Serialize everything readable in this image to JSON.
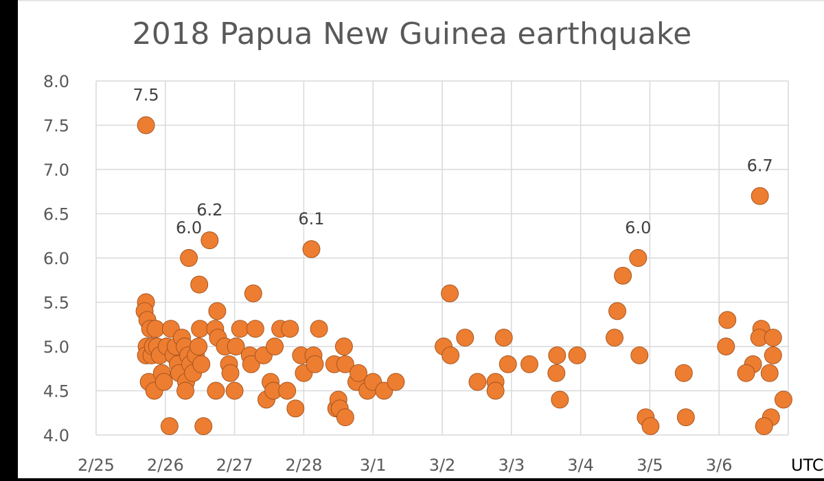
{
  "chart_data": {
    "type": "scatter",
    "title": "2018 Papua New Guinea earthquake",
    "xlabel": "UTC",
    "ylabel": "",
    "x_unit": "days since 2/25 00:00 UTC",
    "xlim": [
      0,
      10
    ],
    "ylim": [
      4.0,
      8.0
    ],
    "x_ticks": [
      {
        "value": 0,
        "label": "2/25"
      },
      {
        "value": 1,
        "label": "2/26"
      },
      {
        "value": 2,
        "label": "2/27"
      },
      {
        "value": 3,
        "label": "2/28"
      },
      {
        "value": 4,
        "label": "3/1"
      },
      {
        "value": 5,
        "label": "3/2"
      },
      {
        "value": 6,
        "label": "3/3"
      },
      {
        "value": 7,
        "label": "3/4"
      },
      {
        "value": 8,
        "label": "3/5"
      },
      {
        "value": 9,
        "label": "3/6"
      }
    ],
    "y_ticks": [
      "4.0",
      "4.5",
      "5.0",
      "5.5",
      "6.0",
      "6.5",
      "7.0",
      "7.5",
      "8.0"
    ],
    "grid": true,
    "legend": "none",
    "marker_color": "#ED7D31",
    "annotations": [
      {
        "x": 0.72,
        "y": 7.5,
        "label": "7.5"
      },
      {
        "x": 1.34,
        "y": 6.0,
        "label": "6.0"
      },
      {
        "x": 1.64,
        "y": 6.2,
        "label": "6.2"
      },
      {
        "x": 3.11,
        "y": 6.1,
        "label": "6.1"
      },
      {
        "x": 7.83,
        "y": 6.0,
        "label": "6.0"
      },
      {
        "x": 9.59,
        "y": 6.7,
        "label": "6.7"
      }
    ],
    "points": [
      [
        0.72,
        7.5
      ],
      [
        0.72,
        5.5
      ],
      [
        0.7,
        5.4
      ],
      [
        0.74,
        5.3
      ],
      [
        0.78,
        5.2
      ],
      [
        0.73,
        5.0
      ],
      [
        0.72,
        4.9
      ],
      [
        0.76,
        4.6
      ],
      [
        0.84,
        4.5
      ],
      [
        0.8,
        4.9
      ],
      [
        0.82,
        5.0
      ],
      [
        0.86,
        5.2
      ],
      [
        0.88,
        5.0
      ],
      [
        0.92,
        4.9
      ],
      [
        0.95,
        4.7
      ],
      [
        0.98,
        4.6
      ],
      [
        1.06,
        4.1
      ],
      [
        1.02,
        5.0
      ],
      [
        1.08,
        5.2
      ],
      [
        1.12,
        4.9
      ],
      [
        1.15,
        5.0
      ],
      [
        1.18,
        4.8
      ],
      [
        1.2,
        4.7
      ],
      [
        1.24,
        5.1
      ],
      [
        1.28,
        5.0
      ],
      [
        1.3,
        4.6
      ],
      [
        1.29,
        4.5
      ],
      [
        1.33,
        4.9
      ],
      [
        1.36,
        4.8
      ],
      [
        1.4,
        4.7
      ],
      [
        1.44,
        4.9
      ],
      [
        1.48,
        5.0
      ],
      [
        1.5,
        5.2
      ],
      [
        1.52,
        4.8
      ],
      [
        1.34,
        6.0
      ],
      [
        1.49,
        5.7
      ],
      [
        1.64,
        6.2
      ],
      [
        1.75,
        5.4
      ],
      [
        1.55,
        4.1
      ],
      [
        1.72,
        5.2
      ],
      [
        1.76,
        5.1
      ],
      [
        1.86,
        5.0
      ],
      [
        1.92,
        4.8
      ],
      [
        1.94,
        4.7
      ],
      [
        1.73,
        4.5
      ],
      [
        2.0,
        4.5
      ],
      [
        2.02,
        5.0
      ],
      [
        2.08,
        5.2
      ],
      [
        2.22,
        4.9
      ],
      [
        2.24,
        4.8
      ],
      [
        2.27,
        5.6
      ],
      [
        2.3,
        5.2
      ],
      [
        2.42,
        4.9
      ],
      [
        2.46,
        4.4
      ],
      [
        2.52,
        4.6
      ],
      [
        2.56,
        4.5
      ],
      [
        2.58,
        5.0
      ],
      [
        2.66,
        5.2
      ],
      [
        2.76,
        4.5
      ],
      [
        2.8,
        5.2
      ],
      [
        2.88,
        4.3
      ],
      [
        2.96,
        4.9
      ],
      [
        3.0,
        4.7
      ],
      [
        3.11,
        6.1
      ],
      [
        3.14,
        4.9
      ],
      [
        3.16,
        4.8
      ],
      [
        3.22,
        5.2
      ],
      [
        3.44,
        4.8
      ],
      [
        3.47,
        4.3
      ],
      [
        3.5,
        4.4
      ],
      [
        3.52,
        4.3
      ],
      [
        3.58,
        5.0
      ],
      [
        3.6,
        4.8
      ],
      [
        3.6,
        4.2
      ],
      [
        3.76,
        4.6
      ],
      [
        3.79,
        4.7
      ],
      [
        3.92,
        4.5
      ],
      [
        4.0,
        4.6
      ],
      [
        4.16,
        4.5
      ],
      [
        4.33,
        4.6
      ],
      [
        5.02,
        5.0
      ],
      [
        5.11,
        5.6
      ],
      [
        5.12,
        4.9
      ],
      [
        5.33,
        5.1
      ],
      [
        5.51,
        4.6
      ],
      [
        5.77,
        4.6
      ],
      [
        5.77,
        4.5
      ],
      [
        5.89,
        5.1
      ],
      [
        5.95,
        4.8
      ],
      [
        6.26,
        4.8
      ],
      [
        6.66,
        4.9
      ],
      [
        6.65,
        4.7
      ],
      [
        6.7,
        4.4
      ],
      [
        6.95,
        4.9
      ],
      [
        7.49,
        5.1
      ],
      [
        7.53,
        5.4
      ],
      [
        7.61,
        5.8
      ],
      [
        7.83,
        6.0
      ],
      [
        7.85,
        4.9
      ],
      [
        7.94,
        4.2
      ],
      [
        8.01,
        4.1
      ],
      [
        8.49,
        4.7
      ],
      [
        8.52,
        4.2
      ],
      [
        9.12,
        5.3
      ],
      [
        9.1,
        5.0
      ],
      [
        9.59,
        6.7
      ],
      [
        9.61,
        5.2
      ],
      [
        9.58,
        5.1
      ],
      [
        9.78,
        5.1
      ],
      [
        9.78,
        4.9
      ],
      [
        9.49,
        4.8
      ],
      [
        9.39,
        4.7
      ],
      [
        9.73,
        4.7
      ],
      [
        9.93,
        4.4
      ],
      [
        9.75,
        4.2
      ],
      [
        9.65,
        4.1
      ]
    ]
  }
}
